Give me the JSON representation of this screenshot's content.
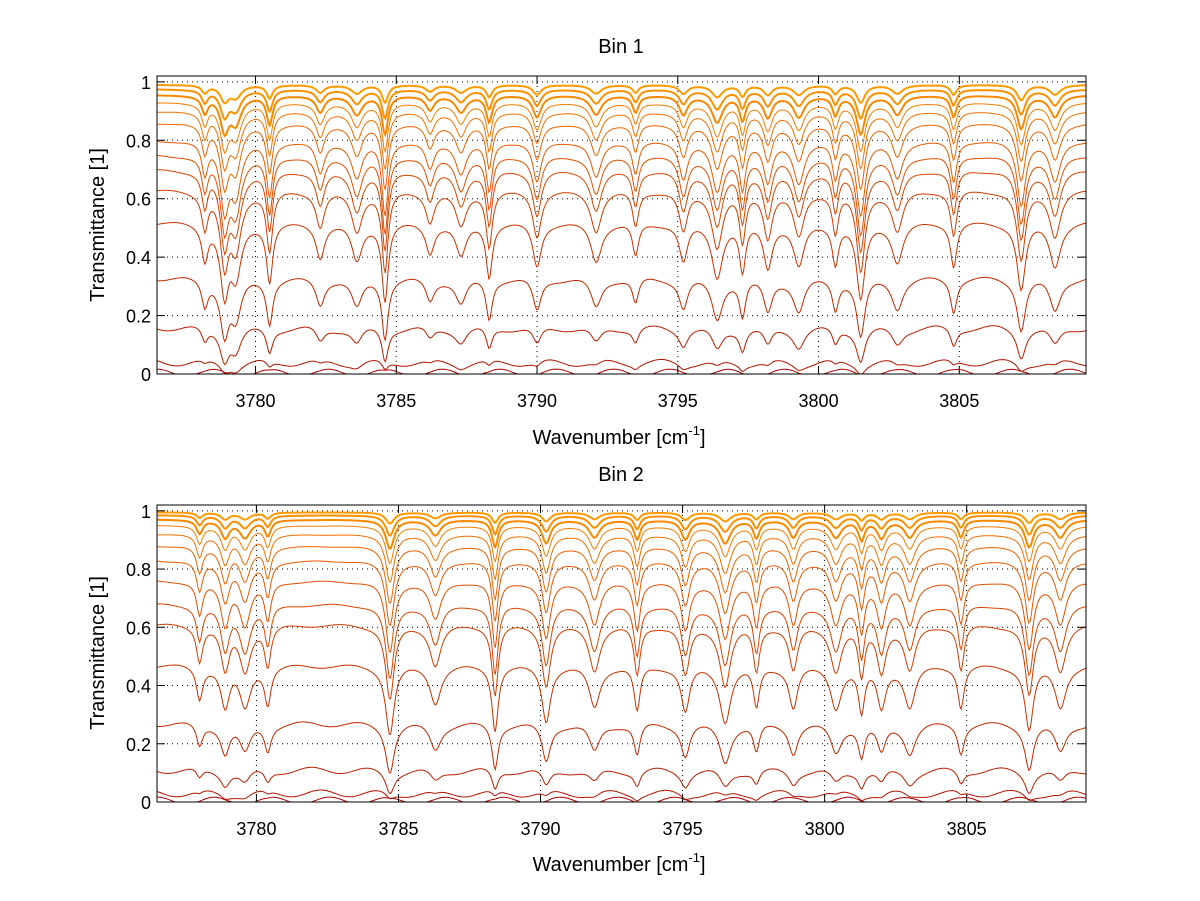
{
  "chart_data": [
    {
      "type": "line",
      "title": "Bin 1",
      "xlabel": "Wavenumber [cm",
      "xlabel_sup": "-1",
      "xlabel_end": "]",
      "ylabel": "Transmittance [1]",
      "xlim": [
        3776.5,
        3809.5
      ],
      "ylim": [
        0,
        1.02
      ],
      "xticks": [
        3780,
        3785,
        3790,
        3795,
        3800,
        3805
      ],
      "yticks": [
        0,
        0.2,
        0.4,
        0.6,
        0.8,
        1
      ],
      "ytick_labels": [
        "0",
        "0.2",
        "0.4",
        "0.6",
        "0.8",
        "1"
      ],
      "grid": true,
      "series_colors": [
        "#aa0000",
        "#b01400",
        "#b81e00",
        "#c02800",
        "#c83200",
        "#d03c00",
        "#d84600",
        "#e05000",
        "#e65a00",
        "#ec6400",
        "#f07000",
        "#f47c00",
        "#f88800",
        "#fb9000",
        "#ff9a00"
      ],
      "baselines": [
        0.005,
        0.04,
        0.16,
        0.33,
        0.52,
        0.63,
        0.7,
        0.75,
        0.8,
        0.86,
        0.9,
        0.93,
        0.955,
        0.975,
        0.99
      ],
      "line_centers": [
        3778.2,
        3778.9,
        3779.3,
        3780.5,
        3782.3,
        3783.6,
        3784.6,
        3786.2,
        3787.3,
        3788.3,
        3790.0,
        3792.1,
        3793.5,
        3795.2,
        3796.4,
        3797.3,
        3798.2,
        3799.3,
        3800.6,
        3801.5,
        3802.8,
        3804.8,
        3807.2,
        3808.4
      ],
      "line_depths": [
        0.35,
        0.7,
        0.55,
        0.6,
        0.35,
        0.4,
        0.8,
        0.3,
        0.35,
        0.55,
        0.45,
        0.4,
        0.35,
        0.4,
        0.55,
        0.5,
        0.45,
        0.45,
        0.4,
        0.8,
        0.4,
        0.45,
        0.7,
        0.45
      ]
    },
    {
      "type": "line",
      "title": "Bin 2",
      "xlabel": "Wavenumber [cm",
      "xlabel_sup": "-1",
      "xlabel_end": "]",
      "ylabel": "Transmittance [1]",
      "xlim": [
        3776.5,
        3809.2
      ],
      "ylim": [
        0,
        1.02
      ],
      "xticks": [
        3780,
        3785,
        3790,
        3795,
        3800,
        3805
      ],
      "yticks": [
        0,
        0.2,
        0.4,
        0.6,
        0.8,
        1
      ],
      "ytick_labels": [
        "0",
        "0.2",
        "0.4",
        "0.6",
        "0.8",
        "1"
      ],
      "grid": true,
      "series_colors": [
        "#aa0000",
        "#b01400",
        "#b81e00",
        "#c02800",
        "#c83200",
        "#d03c00",
        "#d84600",
        "#e05000",
        "#e65a00",
        "#ec6400",
        "#f07000",
        "#f47c00",
        "#f88800",
        "#fb9000",
        "#ff9a00"
      ],
      "baselines": [
        0.005,
        0.03,
        0.11,
        0.27,
        0.47,
        0.61,
        0.68,
        0.76,
        0.83,
        0.88,
        0.92,
        0.95,
        0.97,
        0.985,
        0.995
      ],
      "line_centers": [
        3778.0,
        3778.9,
        3779.6,
        3780.4,
        3784.7,
        3786.3,
        3788.4,
        3790.2,
        3791.9,
        3793.4,
        3795.1,
        3796.5,
        3797.6,
        3798.9,
        3800.4,
        3801.3,
        3802.0,
        3803.0,
        3804.8,
        3807.2,
        3808.3
      ],
      "line_depths": [
        0.35,
        0.45,
        0.45,
        0.4,
        0.75,
        0.4,
        0.7,
        0.6,
        0.45,
        0.5,
        0.5,
        0.6,
        0.45,
        0.45,
        0.45,
        0.5,
        0.45,
        0.45,
        0.45,
        0.7,
        0.45
      ]
    }
  ]
}
